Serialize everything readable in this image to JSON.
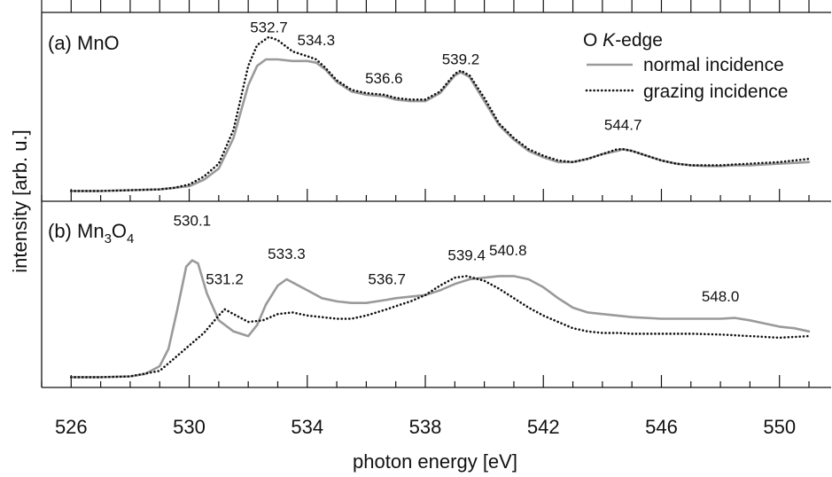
{
  "colors": {
    "normal": "#9a9a9a",
    "grazing": "#111111",
    "axis": "#111111"
  },
  "chart_data": {
    "type": "line",
    "xlabel": "photon energy [eV]",
    "ylabel": "intensity [arb. u.]",
    "xlim": [
      525.0,
      551.75
    ],
    "x_ticks": [
      526,
      530,
      534,
      538,
      542,
      546,
      550
    ],
    "x_minor_step": 1,
    "grid": false,
    "legend": {
      "title_prefix": "O ",
      "title_italic": "K",
      "title_suffix": "-edge",
      "placement": "top-right",
      "entries": [
        "normal incidence",
        "grazing incidence"
      ]
    },
    "panels": [
      {
        "label": "(a) MnO",
        "label_prefix": "(a) MnO",
        "label_sub": "",
        "label_mid": "",
        "label_sub2": "",
        "ylim": [
          0,
          1.1
        ],
        "annotations": [
          {
            "text": "532.7",
            "x": 532.7,
            "y": 1.01
          },
          {
            "text": "534.3",
            "x": 534.3,
            "y": 0.93
          },
          {
            "text": "536.6",
            "x": 536.6,
            "y": 0.69
          },
          {
            "text": "539.2",
            "x": 539.2,
            "y": 0.81
          },
          {
            "text": "544.7",
            "x": 544.7,
            "y": 0.4
          }
        ],
        "series": [
          {
            "name": "normal incidence",
            "style": "solid",
            "x": [
              526,
              527,
              528,
              529,
              529.5,
              530,
              530.5,
              531,
              531.5,
              532,
              532.3,
              532.6,
              533,
              533.5,
              534,
              534.3,
              534.6,
              535,
              535.5,
              536,
              536.6,
              537,
              537.5,
              538,
              538.5,
              539,
              539.2,
              539.5,
              540,
              540.5,
              541,
              541.5,
              542,
              542.5,
              543,
              543.5,
              544,
              544.5,
              544.7,
              545,
              545.5,
              546,
              546.5,
              547,
              547.5,
              548,
              548.5,
              549,
              549.5,
              550,
              550.5,
              551
            ],
            "y": [
              0.02,
              0.02,
              0.025,
              0.03,
              0.04,
              0.05,
              0.09,
              0.16,
              0.35,
              0.68,
              0.8,
              0.84,
              0.84,
              0.83,
              0.83,
              0.82,
              0.78,
              0.7,
              0.64,
              0.62,
              0.61,
              0.59,
              0.58,
              0.58,
              0.63,
              0.74,
              0.76,
              0.73,
              0.58,
              0.43,
              0.34,
              0.27,
              0.23,
              0.2,
              0.2,
              0.22,
              0.25,
              0.27,
              0.28,
              0.27,
              0.24,
              0.21,
              0.19,
              0.18,
              0.175,
              0.175,
              0.18,
              0.18,
              0.185,
              0.19,
              0.195,
              0.2
            ]
          },
          {
            "name": "grazing incidence",
            "style": "dotted",
            "x": [
              526,
              527,
              528,
              529,
              529.5,
              530,
              530.5,
              531,
              531.5,
              532,
              532.3,
              532.7,
              533,
              533.5,
              534,
              534.3,
              534.6,
              535,
              535.5,
              536,
              536.6,
              537,
              537.5,
              538,
              538.5,
              539,
              539.2,
              539.5,
              540,
              540.5,
              541,
              541.5,
              542,
              542.5,
              543,
              543.5,
              544,
              544.5,
              544.7,
              545,
              545.5,
              546,
              546.5,
              547,
              547.5,
              548,
              548.5,
              549,
              549.5,
              550,
              550.5,
              551
            ],
            "y": [
              0.02,
              0.02,
              0.025,
              0.03,
              0.04,
              0.06,
              0.11,
              0.19,
              0.4,
              0.8,
              0.93,
              0.98,
              0.96,
              0.89,
              0.86,
              0.84,
              0.79,
              0.71,
              0.65,
              0.63,
              0.62,
              0.6,
              0.59,
              0.59,
              0.64,
              0.75,
              0.77,
              0.74,
              0.6,
              0.44,
              0.35,
              0.28,
              0.24,
              0.21,
              0.2,
              0.22,
              0.25,
              0.28,
              0.28,
              0.27,
              0.24,
              0.21,
              0.19,
              0.18,
              0.18,
              0.18,
              0.185,
              0.19,
              0.195,
              0.2,
              0.21,
              0.22
            ]
          }
        ]
      },
      {
        "label": "(b) Mn3O4",
        "label_prefix": "(b) Mn",
        "label_sub": "3",
        "label_mid": "O",
        "label_sub2": "4",
        "ylim": [
          0,
          1.1
        ],
        "annotations": [
          {
            "text": "530.1",
            "x": 530.1,
            "y": 0.98
          },
          {
            "text": "531.2",
            "x": 531.2,
            "y": 0.61
          },
          {
            "text": "533.3",
            "x": 533.3,
            "y": 0.77
          },
          {
            "text": "536.7",
            "x": 536.7,
            "y": 0.61
          },
          {
            "text": "539.4",
            "x": 539.4,
            "y": 0.76
          },
          {
            "text": "540.8",
            "x": 540.8,
            "y": 0.79
          },
          {
            "text": "548.0",
            "x": 548.0,
            "y": 0.5
          }
        ],
        "series": [
          {
            "name": "normal incidence",
            "style": "solid",
            "x": [
              526,
              527,
              528,
              528.5,
              529,
              529.3,
              529.6,
              529.9,
              530.1,
              530.3,
              530.6,
              531,
              531.5,
              532,
              532.3,
              532.6,
              533,
              533.3,
              533.6,
              534,
              534.5,
              535,
              535.5,
              536,
              536.7,
              537,
              537.5,
              538,
              538.5,
              539,
              539.5,
              540,
              540.5,
              540.8,
              541,
              541.5,
              542,
              542.5,
              543,
              543.5,
              544,
              544.5,
              545,
              546,
              547,
              548,
              548.5,
              549,
              549.5,
              550,
              550.5,
              551
            ],
            "y": [
              0.02,
              0.02,
              0.025,
              0.04,
              0.09,
              0.2,
              0.45,
              0.72,
              0.76,
              0.74,
              0.55,
              0.38,
              0.31,
              0.28,
              0.35,
              0.48,
              0.6,
              0.64,
              0.61,
              0.57,
              0.52,
              0.5,
              0.49,
              0.49,
              0.51,
              0.52,
              0.53,
              0.54,
              0.57,
              0.61,
              0.64,
              0.65,
              0.66,
              0.66,
              0.66,
              0.64,
              0.59,
              0.52,
              0.46,
              0.43,
              0.42,
              0.41,
              0.4,
              0.39,
              0.39,
              0.39,
              0.395,
              0.38,
              0.36,
              0.34,
              0.33,
              0.31
            ]
          },
          {
            "name": "grazing incidence",
            "style": "dotted",
            "x": [
              526,
              527,
              528,
              529,
              529.5,
              530,
              530.5,
              531,
              531.2,
              531.5,
              532,
              532.5,
              533,
              533.5,
              534,
              534.5,
              535,
              535.5,
              536,
              536.7,
              537,
              537.5,
              538,
              538.5,
              539,
              539.4,
              540,
              540.5,
              541,
              541.5,
              542,
              542.5,
              543,
              543.5,
              544,
              544.5,
              545,
              546,
              547,
              548,
              548.5,
              549,
              549.5,
              550,
              550.5,
              551
            ],
            "y": [
              0.02,
              0.02,
              0.025,
              0.06,
              0.14,
              0.22,
              0.3,
              0.41,
              0.45,
              0.42,
              0.37,
              0.38,
              0.42,
              0.43,
              0.41,
              0.4,
              0.39,
              0.39,
              0.41,
              0.45,
              0.47,
              0.5,
              0.54,
              0.6,
              0.65,
              0.66,
              0.63,
              0.58,
              0.52,
              0.46,
              0.41,
              0.37,
              0.33,
              0.31,
              0.3,
              0.3,
              0.295,
              0.295,
              0.295,
              0.29,
              0.285,
              0.28,
              0.275,
              0.27,
              0.275,
              0.28
            ]
          }
        ]
      }
    ]
  }
}
